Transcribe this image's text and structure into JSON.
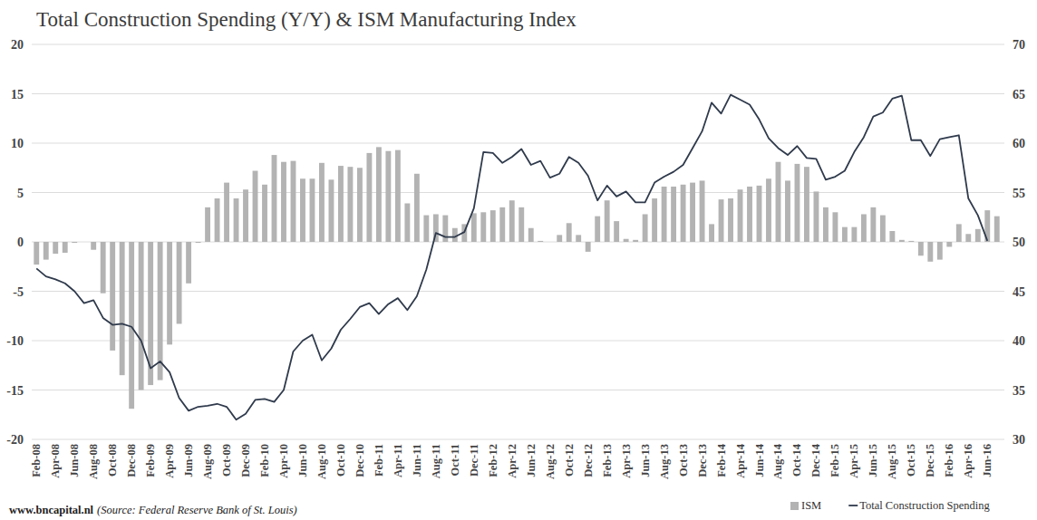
{
  "chart_data": {
    "type": "bar",
    "title": "Total Construction Spending (Y/Y) & ISM Manufacturing Index",
    "source": "www.bncapital.nl",
    "note": "(Source: Federal Reserve Bank of St. Louis)",
    "categories": [
      "Feb-08",
      null,
      "Apr-08",
      null,
      "Jun-08",
      null,
      "Aug-08",
      null,
      "Oct-08",
      null,
      "Dec-08",
      null,
      "Feb-09",
      null,
      "Apr-09",
      null,
      "Jun-09",
      null,
      "Aug-09",
      null,
      "Oct-09",
      null,
      "Dec-09",
      null,
      "Feb-10",
      null,
      "Apr-10",
      null,
      "Jun-10",
      null,
      "Aug-10",
      null,
      "Oct-10",
      null,
      "Dec-10",
      null,
      "Feb-11",
      null,
      "Apr-11",
      null,
      "Jun-11",
      null,
      "Aug-11",
      null,
      "Oct-11",
      null,
      "Dec-11",
      null,
      "Feb-12",
      null,
      "Apr-12",
      null,
      "Jun-12",
      null,
      "Aug-12",
      null,
      "Oct-12",
      null,
      "Dec-12",
      null,
      "Feb-13",
      null,
      "Apr-13",
      null,
      "Jun-13",
      null,
      "Aug-13",
      null,
      "Oct-13",
      null,
      "Dec-13",
      null,
      "Feb-14",
      null,
      "Apr-14",
      null,
      "Jun-14",
      null,
      "Aug-14",
      null,
      "Oct-14",
      null,
      "Dec-14",
      null,
      "Feb-15",
      null,
      "Apr-15",
      null,
      "Jun-15",
      null,
      "Aug-15",
      null,
      "Oct-15",
      null,
      "Dec-15",
      null,
      "Feb-16",
      null,
      "Apr-16",
      null,
      "Jun-16",
      null
    ],
    "series": [
      {
        "name": "ISM",
        "type": "bar",
        "axis": "y2",
        "color": "#b3b3b3",
        "values": [
          47.7,
          48.2,
          48.8,
          48.9,
          49.9,
          50.0,
          49.2,
          44.8,
          39.0,
          36.5,
          33.1,
          35.0,
          35.5,
          36.0,
          39.6,
          41.7,
          45.8,
          49.9,
          53.5,
          54.4,
          56.0,
          54.4,
          55.3,
          57.2,
          55.8,
          58.8,
          58.1,
          58.2,
          56.4,
          56.4,
          58.0,
          56.3,
          57.7,
          57.6,
          57.5,
          59.0,
          59.6,
          59.2,
          59.3,
          53.9,
          56.9,
          52.7,
          52.8,
          52.7,
          51.4,
          51.8,
          52.9,
          53.0,
          53.2,
          53.5,
          54.2,
          53.5,
          51.4,
          50.1,
          50.0,
          50.7,
          51.9,
          50.7,
          49.0,
          52.6,
          54.2,
          52.1,
          50.3,
          50.2,
          52.8,
          54.4,
          55.6,
          55.6,
          55.8,
          56.0,
          56.2,
          51.8,
          54.3,
          54.4,
          55.3,
          55.6,
          55.7,
          56.4,
          58.1,
          56.2,
          57.9,
          57.6,
          55.1,
          53.5,
          53.0,
          51.5,
          51.5,
          52.8,
          53.5,
          52.7,
          51.1,
          50.2,
          50.1,
          48.6,
          48.0,
          48.2,
          49.5,
          51.8,
          50.8,
          51.3,
          53.2,
          52.6
        ]
      },
      {
        "name": "Total Construction Spending",
        "type": "line",
        "color": "#2f3a4c",
        "values": [
          -2.7,
          -3.5,
          -3.8,
          -4.2,
          -5.0,
          -6.2,
          -5.9,
          -7.7,
          -8.4,
          -8.3,
          -8.6,
          -10.0,
          -12.8,
          -12.1,
          -13.2,
          -15.8,
          -17.1,
          -16.7,
          -16.6,
          -16.4,
          -16.7,
          -18.0,
          -17.4,
          -16.0,
          -15.9,
          -16.2,
          -15.0,
          -11.1,
          -10.0,
          -9.4,
          -12.0,
          -10.8,
          -8.9,
          -7.8,
          -6.6,
          -6.2,
          -7.3,
          -6.3,
          -5.7,
          -6.9,
          -5.5,
          -2.8,
          0.9,
          0.5,
          0.5,
          1.0,
          3.4,
          9.1,
          9.0,
          8.0,
          8.6,
          9.4,
          7.8,
          8.2,
          6.5,
          6.9,
          8.6,
          8.0,
          6.7,
          4.2,
          5.7,
          4.6,
          5.1,
          4.0,
          4.0,
          6.0,
          6.6,
          7.1,
          7.8,
          9.5,
          11.2,
          14.1,
          13.0,
          14.9,
          14.4,
          13.9,
          12.4,
          10.5,
          9.5,
          8.8,
          9.7,
          8.5,
          8.4,
          6.3,
          6.6,
          7.2,
          9.1,
          10.6,
          12.7,
          13.1,
          14.5,
          14.8,
          10.3,
          10.3,
          8.7,
          10.4,
          10.6,
          10.8,
          4.4,
          2.7,
          0.1,
          null
        ]
      }
    ],
    "ylim": [
      -20,
      20
    ],
    "yticks": [
      -20,
      -15,
      -10,
      -5,
      0,
      5,
      10,
      15,
      20
    ],
    "y2lim": [
      30,
      70
    ],
    "y2ticks": [
      30,
      35,
      40,
      45,
      50,
      55,
      60,
      65,
      70
    ],
    "grid": true,
    "legend": "bottom-right"
  }
}
